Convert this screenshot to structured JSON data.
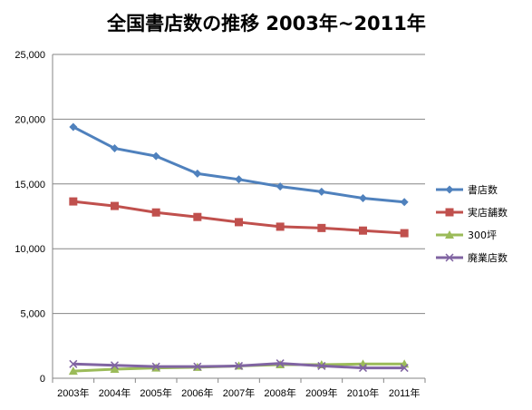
{
  "chart_data": {
    "type": "line",
    "title": "全国書店数の推移 2003年~2011年",
    "categories": [
      "2003年",
      "2004年",
      "2005年",
      "2006年",
      "2007年",
      "2008年",
      "2009年",
      "2010年",
      "2011年"
    ],
    "ylim": [
      0,
      25000
    ],
    "yticks": [
      0,
      5000,
      10000,
      15000,
      20000,
      25000
    ],
    "ytick_labels": [
      "0",
      "5,000",
      "10,000",
      "15,000",
      "20,000",
      "25,000"
    ],
    "grid": true,
    "legend_position": "right",
    "series": [
      {
        "name": "書店数",
        "color": "#4F81BD",
        "marker": "diamond",
        "values": [
          19400,
          17750,
          17150,
          15800,
          15350,
          14800,
          14400,
          13900,
          13600
        ]
      },
      {
        "name": "実店舗数",
        "color": "#C0504D",
        "marker": "square",
        "values": [
          13650,
          13300,
          12800,
          12450,
          12050,
          11700,
          11600,
          11400,
          11200
        ]
      },
      {
        "name": "300坪",
        "color": "#9BBB59",
        "marker": "triangle",
        "values": [
          550,
          700,
          800,
          850,
          950,
          1050,
          1050,
          1100,
          1100
        ]
      },
      {
        "name": "廃業店数",
        "color": "#8064A2",
        "marker": "x",
        "values": [
          1100,
          1000,
          900,
          900,
          950,
          1150,
          950,
          800,
          800
        ]
      }
    ]
  }
}
